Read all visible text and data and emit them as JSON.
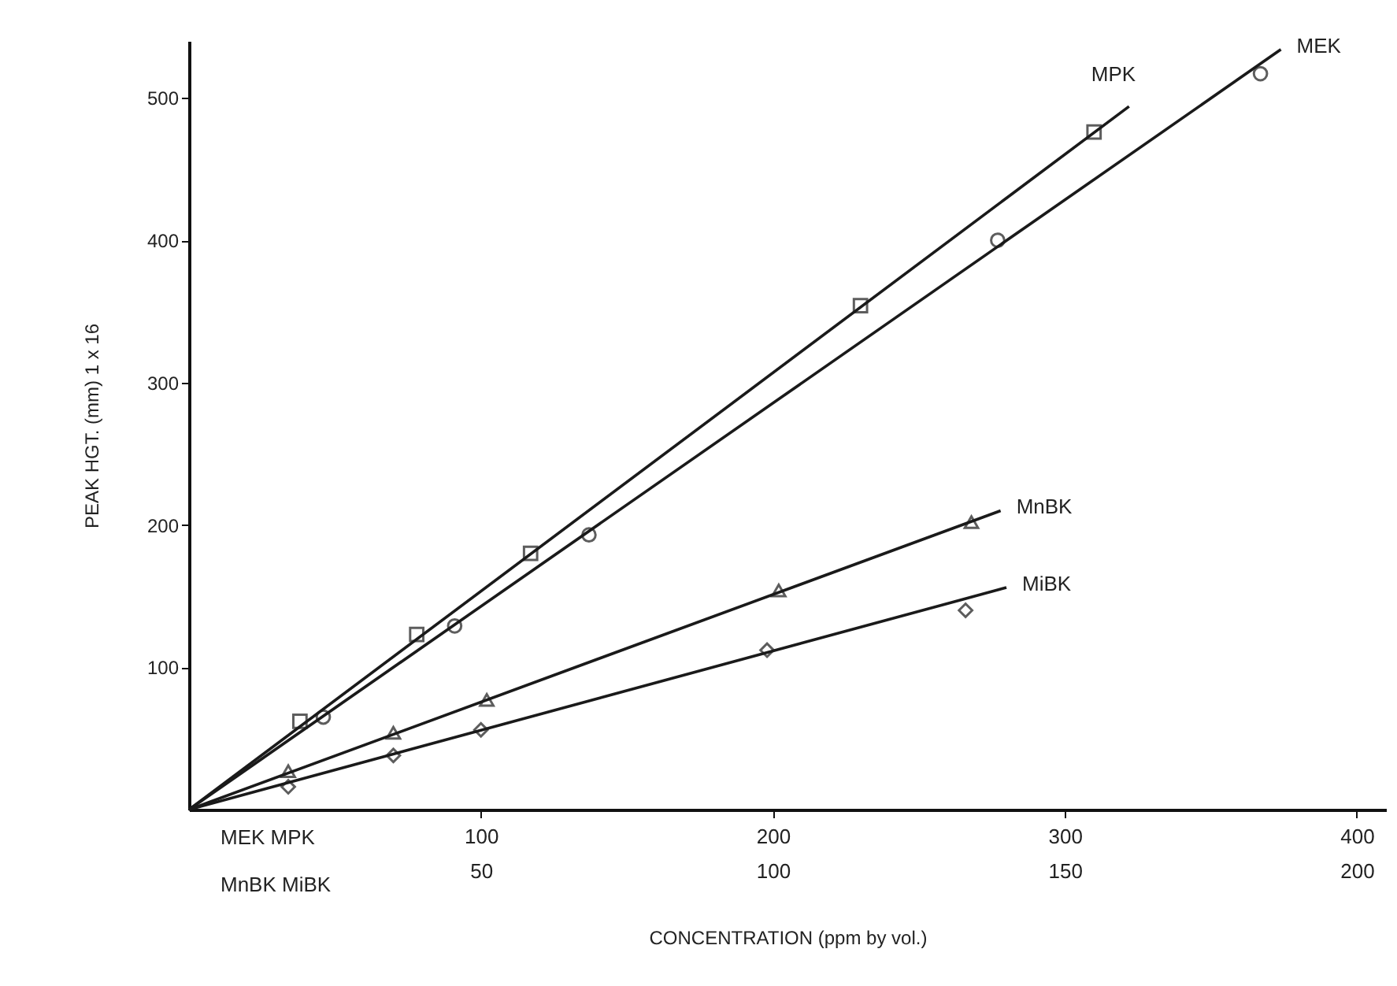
{
  "chart_data": {
    "type": "scatter",
    "xlabel": "CONCENTRATION (ppm by vol.)",
    "ylabel": "PEAK HGT. (mm)    1 x 16",
    "annotations": [
      "MEK   MPK",
      "MnBK   MiBK"
    ],
    "xlim": [
      0,
      410
    ],
    "xticks": [
      100,
      200,
      300,
      400
    ],
    "x2lim": [
      0,
      205
    ],
    "x2ticks": [
      50,
      100,
      150,
      200
    ],
    "ylim": [
      0,
      540
    ],
    "yticks": [
      100,
      200,
      300,
      400,
      500
    ],
    "grid": false,
    "series": [
      {
        "name": "MPK",
        "type": "line",
        "color": "#1a1a1a",
        "marker": "none",
        "x": [
          0,
          322
        ],
        "values": [
          0,
          494
        ]
      },
      {
        "color": "#1a1a1a",
        "marker": "square",
        "x": [
          38,
          78,
          117,
          230,
          310
        ],
        "values": [
          62,
          123,
          180,
          354,
          476
        ]
      },
      {
        "name": "MEK",
        "type": "line",
        "color": "#1a1a1a",
        "marker": "none",
        "x": [
          0,
          374
        ],
        "values": [
          0,
          534
        ]
      },
      {
        "color": "#1a1a1a",
        "marker": "circle",
        "x": [
          46,
          91,
          137,
          277,
          367
        ],
        "values": [
          65,
          129,
          193,
          400,
          517
        ]
      },
      {
        "name": "MnBK",
        "type": "line",
        "axis": "x2",
        "color": "#1a1a1a",
        "marker": "none",
        "x": [
          0,
          139
        ],
        "values": [
          0,
          210
        ]
      },
      {
        "axis": "x2",
        "color": "#1a1a1a",
        "marker": "triangle",
        "x": [
          17,
          35,
          51,
          101,
          134
        ],
        "values": [
          27,
          54,
          77,
          154,
          202
        ]
      },
      {
        "name": "MiBK",
        "type": "line",
        "axis": "x2",
        "color": "#1a1a1a",
        "marker": "none",
        "x": [
          0,
          140
        ],
        "values": [
          0,
          156
        ]
      },
      {
        "axis": "x2",
        "color": "#1a1a1a",
        "marker": "diamond",
        "x": [
          17,
          35,
          50,
          99,
          133
        ],
        "values": [
          16,
          38,
          56,
          112,
          140
        ]
      }
    ]
  }
}
